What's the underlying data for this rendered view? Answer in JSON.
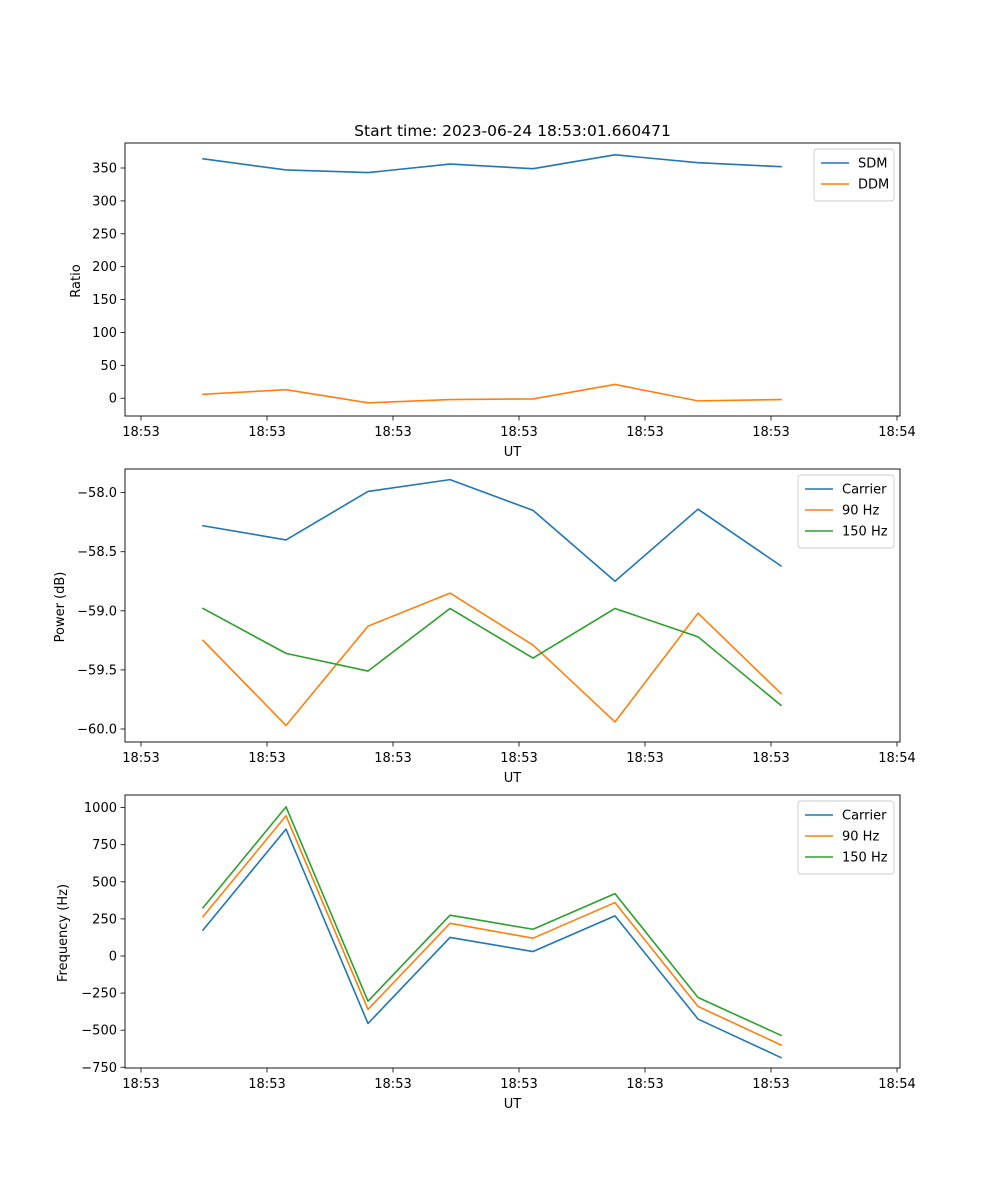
{
  "chart_data": [
    {
      "type": "line",
      "title": "Start time: 2023-06-24 18:53:01.660471",
      "xlabel": "UT",
      "ylabel": "Ratio",
      "x_tick_labels": [
        "18:53",
        "18:53",
        "18:53",
        "18:53",
        "18:53",
        "18:53",
        "18:54"
      ],
      "y_ticks": [
        0,
        50,
        100,
        150,
        200,
        250,
        300,
        350
      ],
      "ylim": [
        -27,
        388
      ],
      "grid": false,
      "legend_position": "top-right",
      "series": [
        {
          "name": "SDM",
          "color": "#1f77b4",
          "values": [
            364,
            347,
            343,
            356,
            349,
            370,
            358,
            352
          ]
        },
        {
          "name": "DDM",
          "color": "#ff7f0e",
          "values": [
            6,
            13,
            -7,
            -2,
            -1,
            21,
            -4,
            -2
          ]
        }
      ]
    },
    {
      "type": "line",
      "title": "",
      "xlabel": "UT",
      "ylabel": "Power (dB)",
      "x_tick_labels": [
        "18:53",
        "18:53",
        "18:53",
        "18:53",
        "18:53",
        "18:53",
        "18:54"
      ],
      "y_ticks": [
        -60.0,
        -59.5,
        -59.0,
        -58.5,
        -58.0
      ],
      "y_tick_labels": [
        "−60.0",
        "−59.5",
        "−59.0",
        "−58.5",
        "−58.0"
      ],
      "ylim": [
        -60.11,
        -57.8
      ],
      "grid": false,
      "legend_position": "top-right",
      "series": [
        {
          "name": "Carrier",
          "color": "#1f77b4",
          "values": [
            -58.28,
            -58.4,
            -57.99,
            -57.89,
            -58.15,
            -58.75,
            -58.14,
            -58.62
          ]
        },
        {
          "name": "90 Hz",
          "color": "#ff7f0e",
          "values": [
            -59.25,
            -59.97,
            -59.13,
            -58.85,
            -59.29,
            -59.94,
            -59.02,
            -59.7
          ]
        },
        {
          "name": "150 Hz",
          "color": "#2ca02c",
          "values": [
            -58.98,
            -59.36,
            -59.51,
            -58.98,
            -59.4,
            -58.98,
            -59.22,
            -59.8
          ]
        }
      ]
    },
    {
      "type": "line",
      "title": "",
      "xlabel": "UT",
      "ylabel": "Frequency (Hz)",
      "x_tick_labels": [
        "18:53",
        "18:53",
        "18:53",
        "18:53",
        "18:53",
        "18:53",
        "18:54"
      ],
      "y_ticks": [
        -750,
        -500,
        -250,
        0,
        250,
        500,
        750,
        1000
      ],
      "y_tick_labels": [
        "−750",
        "−500",
        "−250",
        "0",
        "250",
        "500",
        "750",
        "1000"
      ],
      "ylim": [
        -755,
        1085
      ],
      "grid": false,
      "legend_position": "top-right",
      "series": [
        {
          "name": "Carrier",
          "color": "#1f77b4",
          "values": [
            175,
            855,
            -455,
            125,
            30,
            270,
            -425,
            -685
          ]
        },
        {
          "name": "90 Hz",
          "color": "#ff7f0e",
          "values": [
            265,
            945,
            -360,
            220,
            120,
            360,
            -340,
            -600
          ]
        },
        {
          "name": "150 Hz",
          "color": "#2ca02c",
          "values": [
            325,
            1005,
            -305,
            275,
            180,
            420,
            -280,
            -535
          ]
        }
      ]
    }
  ]
}
